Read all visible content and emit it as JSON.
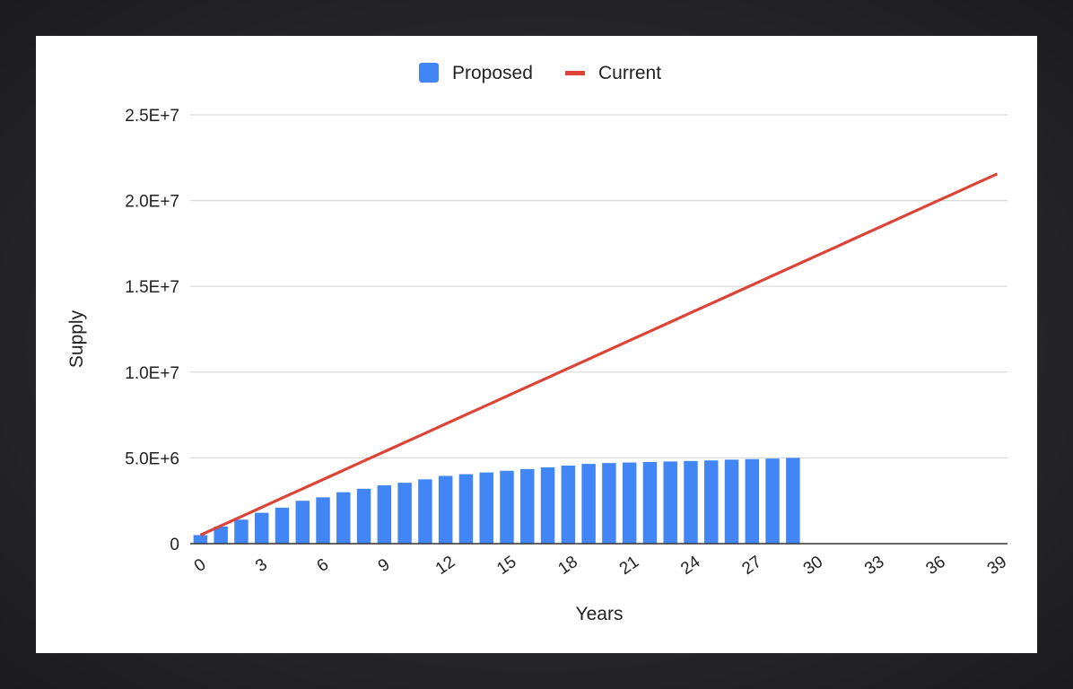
{
  "chart_data": {
    "type": "bar",
    "xlabel": "Years",
    "ylabel": "Supply",
    "ylim": [
      0,
      25000000
    ],
    "yticks": [
      {
        "value": 0,
        "label": "0"
      },
      {
        "value": 5000000,
        "label": "5.0E+6"
      },
      {
        "value": 10000000,
        "label": "1.0E+7"
      },
      {
        "value": 15000000,
        "label": "1.5E+7"
      },
      {
        "value": 20000000,
        "label": "2.0E+7"
      },
      {
        "value": 25000000,
        "label": "2.5E+7"
      }
    ],
    "xticks": [
      "0",
      "3",
      "6",
      "9",
      "12",
      "15",
      "18",
      "21",
      "24",
      "27",
      "30",
      "33",
      "36",
      "39"
    ],
    "x": [
      0,
      1,
      2,
      3,
      4,
      5,
      6,
      7,
      8,
      9,
      10,
      11,
      12,
      13,
      14,
      15,
      16,
      17,
      18,
      19,
      20,
      21,
      22,
      23,
      24,
      25,
      26,
      27,
      28,
      29,
      30,
      31,
      32,
      33,
      34,
      35,
      36,
      37,
      38,
      39
    ],
    "grid": true,
    "legend": "top-center",
    "series": [
      {
        "name": "Proposed",
        "kind": "bar",
        "color": "#4285f4",
        "values": [
          500000,
          1000000,
          1400000,
          1800000,
          2100000,
          2500000,
          2700000,
          3000000,
          3200000,
          3400000,
          3550000,
          3750000,
          3950000,
          4050000,
          4150000,
          4250000,
          4350000,
          4450000,
          4550000,
          4650000,
          4700000,
          4730000,
          4760000,
          4790000,
          4820000,
          4850000,
          4900000,
          4930000,
          4960000,
          5000000,
          0,
          0,
          0,
          0,
          0,
          0,
          0,
          0,
          0,
          0
        ]
      },
      {
        "name": "Current",
        "kind": "line",
        "color": "#db4437",
        "values": [
          500000,
          1040000,
          1580000,
          2120000,
          2660000,
          3200000,
          3740000,
          4280000,
          4820000,
          5360000,
          5900000,
          6440000,
          6980000,
          7520000,
          8060000,
          8600000,
          9140000,
          9680000,
          10220000,
          10760000,
          11300000,
          11840000,
          12380000,
          12920000,
          13460000,
          14000000,
          14540000,
          15080000,
          15620000,
          16160000,
          16700000,
          17240000,
          17780000,
          18320000,
          18860000,
          19400000,
          19940000,
          20480000,
          21020000,
          21560000
        ]
      }
    ]
  }
}
